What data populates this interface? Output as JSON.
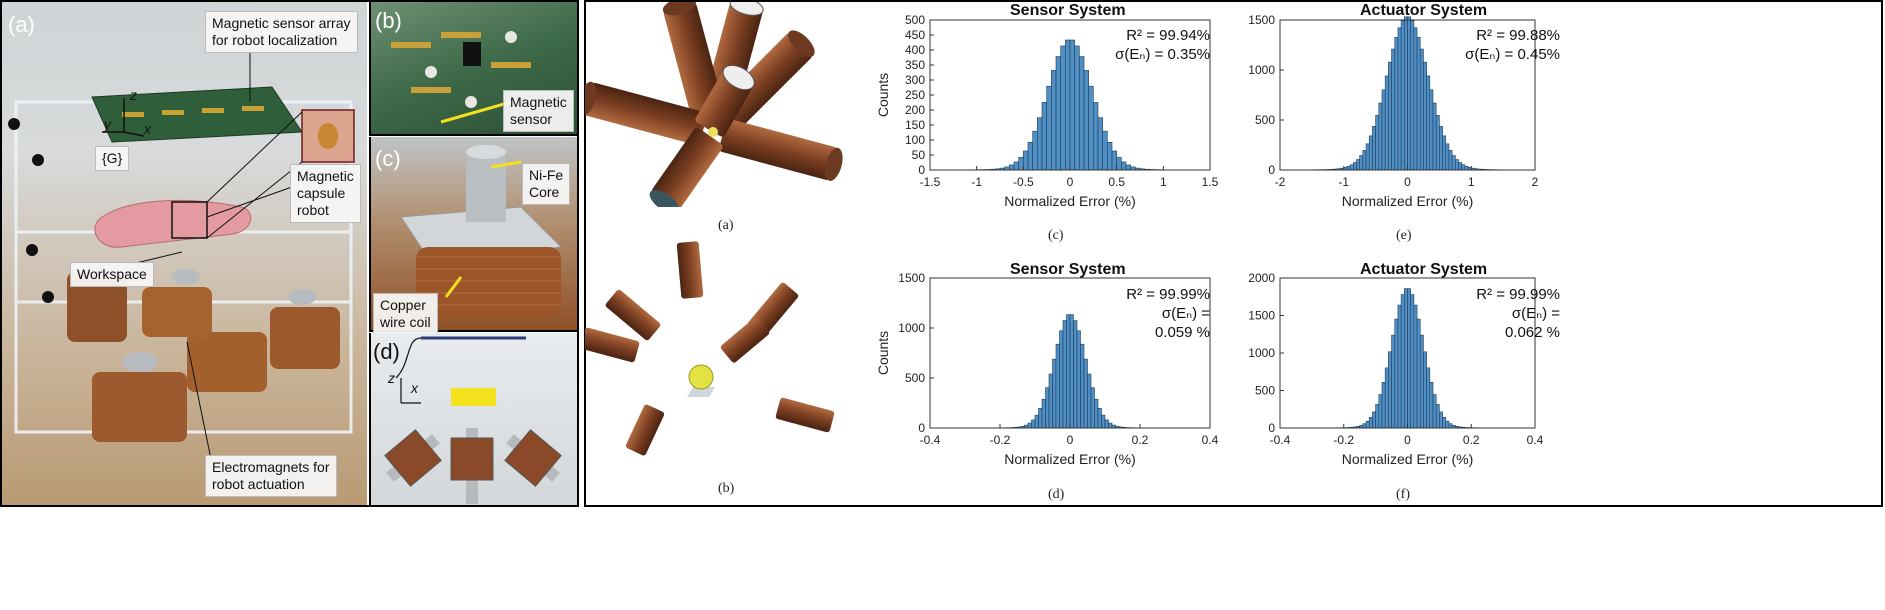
{
  "left_panel": {
    "a": {
      "label": "(a)",
      "callouts": {
        "sensor_array": [
          "Magnetic sensor array",
          "for robot localization"
        ],
        "frame": "{G}",
        "capsule": [
          "Magnetic",
          "capsule",
          "robot"
        ],
        "workspace": "Workspace",
        "electromagnets": [
          "Electromagnets for",
          "robot actuation"
        ]
      },
      "axes": {
        "z": "z",
        "y": "y",
        "x": "x"
      }
    },
    "b": {
      "label": "(b)",
      "callout": [
        "Magnetic",
        "sensor"
      ]
    },
    "c": {
      "label": "(c)",
      "callout_core": [
        "Ni-Fe",
        "Core"
      ],
      "callout_coil": [
        "Copper",
        "wire coil"
      ]
    },
    "d": {
      "label": "(d)",
      "axes": {
        "z": "z",
        "x": "x"
      }
    }
  },
  "right_panel": {
    "captions": {
      "a": "(a)",
      "b": "(b)",
      "c": "(c)",
      "d": "(d)",
      "e": "(e)",
      "f": "(f)"
    }
  },
  "colors": {
    "bar_fill": "#4f8fc4",
    "bar_stroke": "#1f3e5c",
    "copper": "#8a4a2a"
  },
  "chart_data": [
    {
      "id": "c",
      "type": "bar",
      "title": "Sensor System",
      "xlabel": "Normalized Error (%)",
      "ylabel": "Counts",
      "xlim": [
        -1.5,
        1.5
      ],
      "ylim": [
        0,
        500
      ],
      "xticks": [
        "-1.5",
        "-1",
        "-0.5",
        "0",
        "0.5",
        "1",
        "1.5"
      ],
      "yticks": [
        "0",
        "50",
        "100",
        "150",
        "200",
        "250",
        "300",
        "350",
        "400",
        "450",
        "500"
      ],
      "stats": [
        "R² = 99.94%",
        "σ(Eₙ) = 0.35%"
      ],
      "histogram": {
        "center": 0.0,
        "sigma": 0.24,
        "peak": 420,
        "bin_width": 0.05,
        "range": [
          -1.3,
          1.4
        ]
      }
    },
    {
      "id": "e",
      "type": "bar",
      "title": "Actuator System",
      "xlabel": "Normalized Error (%)",
      "ylabel": "",
      "xlim": [
        -2,
        2
      ],
      "ylim": [
        0,
        1500
      ],
      "xticks": [
        "-2",
        "-1",
        "0",
        "1",
        "2"
      ],
      "yticks": [
        "0",
        "500",
        "1000",
        "1500"
      ],
      "stats": [
        "R² = 99.88%",
        "σ(Eₙ) = 0.45%"
      ],
      "histogram": {
        "center": 0.0,
        "sigma": 0.33,
        "peak": 1480,
        "bin_width": 0.05,
        "range": [
          -1.7,
          1.7
        ]
      }
    },
    {
      "id": "d",
      "type": "bar",
      "title": "Sensor System",
      "xlabel": "Normalized Error (%)",
      "ylabel": "Counts",
      "xlim": [
        -0.4,
        0.4
      ],
      "ylim": [
        0,
        1500
      ],
      "xticks": [
        "-0.4",
        "-0.2",
        "0",
        "0.2",
        "0.4"
      ],
      "yticks": [
        "0",
        "500",
        "1000",
        "1500"
      ],
      "stats": [
        "R² = 99.99%",
        "σ(Eₙ) =",
        "0.059 %"
      ],
      "histogram": {
        "center": 0.0,
        "sigma": 0.045,
        "peak": 1100,
        "bin_width": 0.01,
        "range": [
          -0.25,
          0.25
        ]
      }
    },
    {
      "id": "f",
      "type": "bar",
      "title": "Actuator System",
      "xlabel": "Normalized Error (%)",
      "ylabel": "",
      "xlim": [
        -0.4,
        0.4
      ],
      "ylim": [
        0,
        2000
      ],
      "xticks": [
        "-0.4",
        "-0.2",
        "0",
        "0.2",
        "0.4"
      ],
      "yticks": [
        "0",
        "500",
        "1000",
        "1500",
        "2000"
      ],
      "stats": [
        "R² = 99.99%",
        "σ(Eₙ) =",
        "0.062 %"
      ],
      "histogram": {
        "center": 0.0,
        "sigma": 0.05,
        "peak": 1800,
        "bin_width": 0.01,
        "range": [
          -0.28,
          0.28
        ]
      }
    }
  ]
}
